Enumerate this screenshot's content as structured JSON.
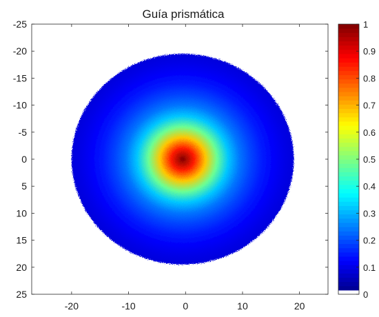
{
  "chart_data": {
    "type": "heatmap",
    "title": "Guía prismática",
    "xlabel": "",
    "ylabel": "",
    "xlim": [
      -27,
      25
    ],
    "ylim": [
      -25,
      25
    ],
    "y_reversed": true,
    "x_ticks": [
      -20,
      -10,
      0,
      10,
      20
    ],
    "x_tick_labels": [
      "-20",
      "-10",
      "0",
      "10",
      "20"
    ],
    "y_ticks": [
      -25,
      -20,
      -15,
      -10,
      -5,
      0,
      5,
      10,
      15,
      20,
      25
    ],
    "y_tick_labels": [
      "-25",
      "-20",
      "-15",
      "-10",
      "-5",
      "0",
      "5",
      "10",
      "15",
      "20",
      "25"
    ],
    "grid": false,
    "colorbar": {
      "colormap": "jet",
      "range": [
        0,
        1
      ],
      "ticks": [
        0,
        0.1,
        0.2,
        0.3,
        0.4,
        0.5,
        0.6,
        0.7,
        0.8,
        0.9,
        1
      ],
      "tick_labels": [
        "0",
        "0.1",
        "0.2",
        "0.3",
        "0.4",
        "0.5",
        "0.6",
        "0.7",
        "0.8",
        "0.9",
        "1"
      ],
      "zero_color": "#ffffff"
    },
    "intensity_profile": {
      "center": [
        -0.5,
        0
      ],
      "radius_edge": 19.5,
      "radius_values": [
        0,
        2,
        4,
        6,
        8,
        10,
        12,
        14,
        16,
        18,
        19.5
      ],
      "intensity_values": [
        1.0,
        0.85,
        0.68,
        0.48,
        0.32,
        0.24,
        0.19,
        0.15,
        0.12,
        0.1,
        0.09
      ]
    }
  }
}
